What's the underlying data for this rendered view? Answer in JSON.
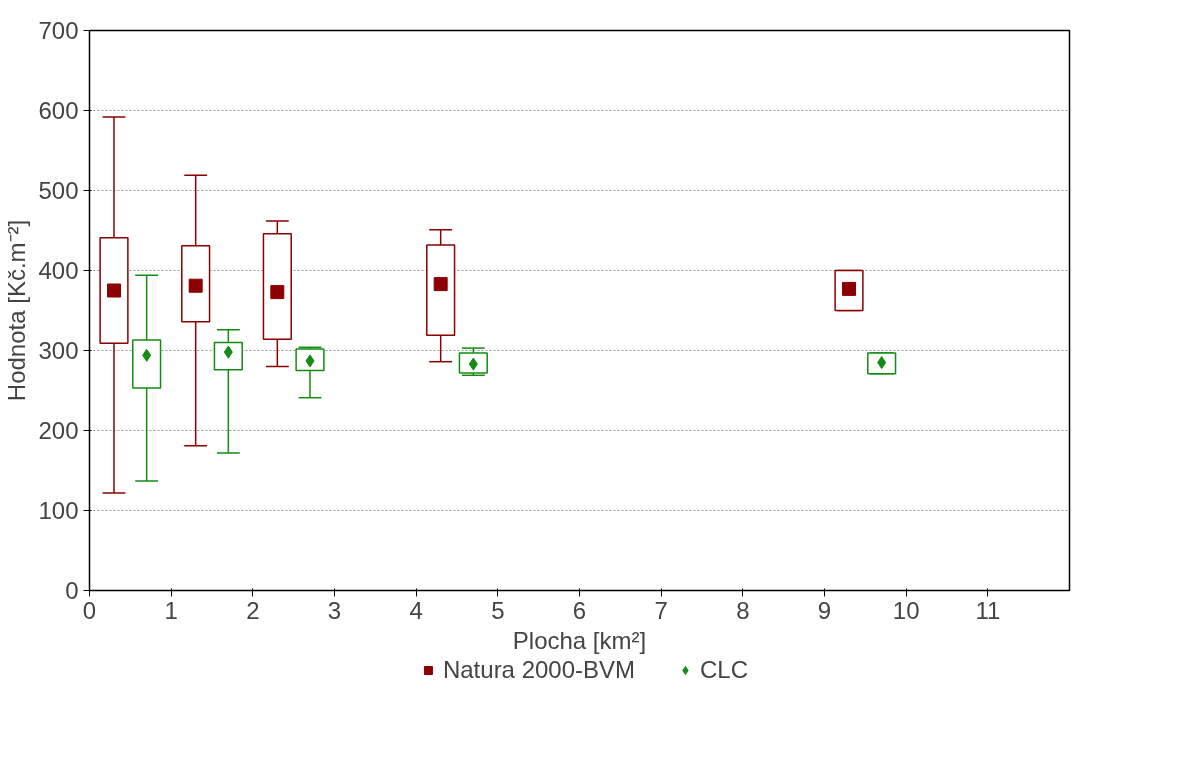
{
  "chart_data": {
    "type": "box",
    "xlabel": "Plocha [km²]",
    "ylabel": "Hodnota [Kč.m⁻²]",
    "xlim": [
      0,
      12
    ],
    "xticks": [
      0,
      1,
      2,
      3,
      4,
      5,
      6,
      7,
      8,
      9,
      10,
      11
    ],
    "ylim": [
      0,
      700
    ],
    "yticks": [
      0,
      100,
      200,
      300,
      400,
      500,
      600,
      700
    ],
    "grid": "y",
    "legend": "bottom",
    "series": [
      {
        "name": "Natura 2000-BVM",
        "color": "#8b0000",
        "marker": "square",
        "x": [
          0.3,
          1.3,
          2.3,
          4.3,
          9.3
        ],
        "boxes": [
          {
            "low": 122,
            "q1": 309,
            "median": 375,
            "q3": 441,
            "high": 592
          },
          {
            "low": 181,
            "q1": 336,
            "median": 381,
            "q3": 431,
            "high": 519
          },
          {
            "low": 280,
            "q1": 314,
            "median": 373,
            "q3": 446,
            "high": 462
          },
          {
            "low": 286,
            "q1": 319,
            "median": 383,
            "q3": 432,
            "high": 451
          },
          {
            "low": 350,
            "q1": 350,
            "median": 377,
            "q3": 400,
            "high": 400
          }
        ]
      },
      {
        "name": "CLC",
        "color": "#128c12",
        "marker": "diamond",
        "x": [
          0.7,
          1.7,
          2.7,
          4.7,
          9.7
        ],
        "boxes": [
          {
            "low": 137,
            "q1": 253,
            "median": 294,
            "q3": 313,
            "high": 394
          },
          {
            "low": 172,
            "q1": 276,
            "median": 298,
            "q3": 310,
            "high": 326
          },
          {
            "low": 241,
            "q1": 275,
            "median": 287,
            "q3": 302,
            "high": 304
          },
          {
            "low": 269,
            "q1": 272,
            "median": 283,
            "q3": 297,
            "high": 303
          },
          {
            "low": 271,
            "q1": 271,
            "median": 285,
            "q3": 297,
            "high": 297
          }
        ]
      }
    ]
  }
}
